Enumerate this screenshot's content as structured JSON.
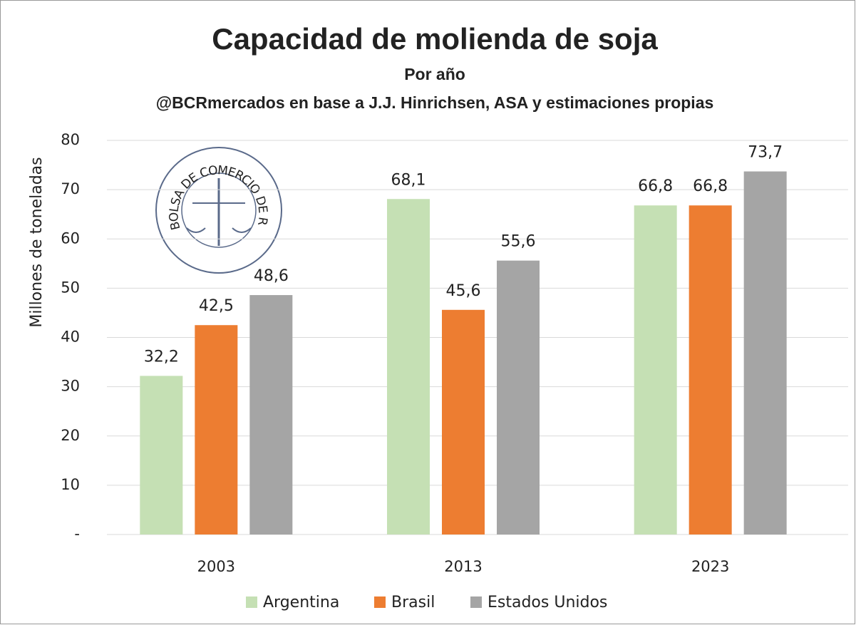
{
  "chart_data": {
    "type": "bar",
    "title": "Capacidad de molienda de soja",
    "subtitle": "Por año",
    "source": "@BCRmercados en base a J.J. Hinrichsen, ASA y estimaciones propias",
    "y_label": "Millones de toneladas",
    "logo_text": "BOLSA DE COMERCIO DE ROSARIO",
    "categories": [
      "2003",
      "2013",
      "2023"
    ],
    "series": [
      {
        "name": "Argentina",
        "color": "#c5e0b4",
        "values": [
          32.2,
          68.1,
          66.8
        ],
        "value_labels": [
          "32,2",
          "68,1",
          "66,8"
        ]
      },
      {
        "name": "Brasil",
        "color": "#ed7d31",
        "values": [
          42.5,
          45.6,
          66.8
        ],
        "value_labels": [
          "42,5",
          "45,6",
          "66,8"
        ]
      },
      {
        "name": "Estados Unidos",
        "color": "#a5a5a5",
        "values": [
          48.6,
          55.6,
          73.7
        ],
        "value_labels": [
          "48,6",
          "55,6",
          "73,7"
        ]
      }
    ],
    "ylim": [
      0,
      80
    ],
    "yticks": [
      {
        "value": 0,
        "label": "-"
      },
      10,
      20,
      30,
      40,
      50,
      60,
      70,
      80
    ],
    "grid": true,
    "legend": "bottom"
  }
}
